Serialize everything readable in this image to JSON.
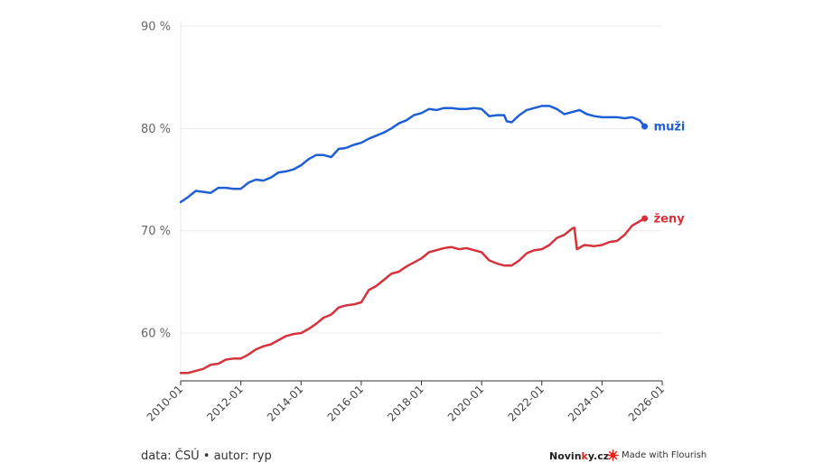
{
  "chart_data": {
    "type": "line",
    "y_ticks": [
      "60 %",
      "70 %",
      "80 %",
      "90 %"
    ],
    "y_tick_values": [
      60,
      70,
      80,
      90
    ],
    "ylim": [
      55,
      90
    ],
    "x_ticks": [
      "2010-01",
      "2012-01",
      "2014-01",
      "2016-01",
      "2018-01",
      "2020-01",
      "2022-01",
      "2024-01",
      "2026-01"
    ],
    "xlim": [
      "2010-01",
      "2026-01"
    ],
    "grid": true,
    "legend": "end-of-line labels",
    "series": [
      {
        "name": "muži",
        "color": "#1f5fd6",
        "points": [
          [
            "2010-01",
            72.8
          ],
          [
            "2010-04",
            73.3
          ],
          [
            "2010-07",
            73.9
          ],
          [
            "2010-10",
            73.8
          ],
          [
            "2011-01",
            73.7
          ],
          [
            "2011-04",
            74.2
          ],
          [
            "2011-07",
            74.2
          ],
          [
            "2011-10",
            74.1
          ],
          [
            "2012-01",
            74.1
          ],
          [
            "2012-04",
            74.7
          ],
          [
            "2012-07",
            75.0
          ],
          [
            "2012-10",
            74.9
          ],
          [
            "2013-01",
            75.2
          ],
          [
            "2013-04",
            75.7
          ],
          [
            "2013-07",
            75.8
          ],
          [
            "2013-10",
            76.0
          ],
          [
            "2014-01",
            76.4
          ],
          [
            "2014-04",
            77.0
          ],
          [
            "2014-07",
            77.4
          ],
          [
            "2014-10",
            77.4
          ],
          [
            "2015-01",
            77.2
          ],
          [
            "2015-04",
            78.0
          ],
          [
            "2015-07",
            78.1
          ],
          [
            "2015-10",
            78.4
          ],
          [
            "2016-01",
            78.6
          ],
          [
            "2016-04",
            79.0
          ],
          [
            "2016-07",
            79.3
          ],
          [
            "2016-10",
            79.6
          ],
          [
            "2017-01",
            80.0
          ],
          [
            "2017-04",
            80.5
          ],
          [
            "2017-07",
            80.8
          ],
          [
            "2017-10",
            81.3
          ],
          [
            "2018-01",
            81.5
          ],
          [
            "2018-04",
            81.9
          ],
          [
            "2018-07",
            81.8
          ],
          [
            "2018-10",
            82.0
          ],
          [
            "2019-01",
            82.0
          ],
          [
            "2019-04",
            81.9
          ],
          [
            "2019-07",
            81.9
          ],
          [
            "2019-10",
            82.0
          ],
          [
            "2020-01",
            81.9
          ],
          [
            "2020-04",
            81.2
          ],
          [
            "2020-07",
            81.3
          ],
          [
            "2020-10",
            81.3
          ],
          [
            "2020-11",
            80.7
          ],
          [
            "2021-01",
            80.6
          ],
          [
            "2021-04",
            81.3
          ],
          [
            "2021-07",
            81.8
          ],
          [
            "2021-10",
            82.0
          ],
          [
            "2022-01",
            82.2
          ],
          [
            "2022-04",
            82.2
          ],
          [
            "2022-07",
            81.9
          ],
          [
            "2022-10",
            81.4
          ],
          [
            "2023-01",
            81.6
          ],
          [
            "2023-04",
            81.8
          ],
          [
            "2023-07",
            81.4
          ],
          [
            "2023-10",
            81.2
          ],
          [
            "2024-01",
            81.1
          ],
          [
            "2024-04",
            81.1
          ],
          [
            "2024-07",
            81.1
          ],
          [
            "2024-10",
            81.0
          ],
          [
            "2025-01",
            81.1
          ],
          [
            "2025-04",
            80.8
          ],
          [
            "2025-06",
            80.2
          ]
        ]
      },
      {
        "name": "ženy",
        "color": "#d6323c",
        "points": [
          [
            "2010-01",
            56.1
          ],
          [
            "2010-04",
            56.1
          ],
          [
            "2010-07",
            56.3
          ],
          [
            "2010-10",
            56.5
          ],
          [
            "2011-01",
            56.9
          ],
          [
            "2011-04",
            57.0
          ],
          [
            "2011-07",
            57.4
          ],
          [
            "2011-10",
            57.5
          ],
          [
            "2012-01",
            57.5
          ],
          [
            "2012-04",
            57.9
          ],
          [
            "2012-07",
            58.4
          ],
          [
            "2012-10",
            58.7
          ],
          [
            "2013-01",
            58.9
          ],
          [
            "2013-04",
            59.3
          ],
          [
            "2013-07",
            59.7
          ],
          [
            "2013-10",
            59.9
          ],
          [
            "2014-01",
            60.0
          ],
          [
            "2014-04",
            60.4
          ],
          [
            "2014-07",
            60.9
          ],
          [
            "2014-10",
            61.5
          ],
          [
            "2015-01",
            61.8
          ],
          [
            "2015-04",
            62.5
          ],
          [
            "2015-07",
            62.7
          ],
          [
            "2015-10",
            62.8
          ],
          [
            "2016-01",
            63.0
          ],
          [
            "2016-04",
            64.2
          ],
          [
            "2016-07",
            64.6
          ],
          [
            "2016-10",
            65.2
          ],
          [
            "2017-01",
            65.8
          ],
          [
            "2017-04",
            66.0
          ],
          [
            "2017-07",
            66.5
          ],
          [
            "2017-10",
            66.9
          ],
          [
            "2018-01",
            67.3
          ],
          [
            "2018-04",
            67.9
          ],
          [
            "2018-07",
            68.1
          ],
          [
            "2018-10",
            68.3
          ],
          [
            "2019-01",
            68.4
          ],
          [
            "2019-04",
            68.2
          ],
          [
            "2019-07",
            68.3
          ],
          [
            "2019-10",
            68.1
          ],
          [
            "2020-01",
            67.9
          ],
          [
            "2020-04",
            67.1
          ],
          [
            "2020-07",
            66.8
          ],
          [
            "2020-10",
            66.6
          ],
          [
            "2021-01",
            66.6
          ],
          [
            "2021-04",
            67.1
          ],
          [
            "2021-07",
            67.8
          ],
          [
            "2021-10",
            68.1
          ],
          [
            "2022-01",
            68.2
          ],
          [
            "2022-04",
            68.6
          ],
          [
            "2022-07",
            69.3
          ],
          [
            "2022-10",
            69.6
          ],
          [
            "2023-01",
            70.2
          ],
          [
            "2023-02",
            70.3
          ],
          [
            "2023-03",
            68.2
          ],
          [
            "2023-06",
            68.6
          ],
          [
            "2023-10",
            68.5
          ],
          [
            "2024-01",
            68.6
          ],
          [
            "2024-04",
            68.9
          ],
          [
            "2024-07",
            69.0
          ],
          [
            "2024-10",
            69.6
          ],
          [
            "2025-01",
            70.5
          ],
          [
            "2025-06",
            71.2
          ]
        ]
      }
    ]
  },
  "footer": {
    "source": "data: ČSÚ • autor: ryp",
    "brand_left": "Novin",
    "brand_accent": "k",
    "brand_right": "y.cz",
    "flourish": "Made with Flourish"
  }
}
